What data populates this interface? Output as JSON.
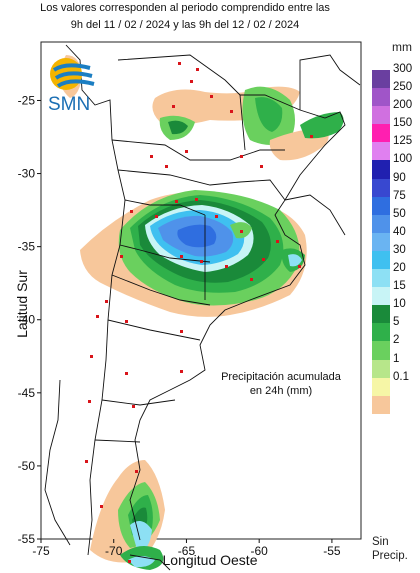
{
  "header": {
    "line1": "Los valores corresponden al periodo comprendido entre las",
    "line2": "9h del 11 / 02 / 2024  y las 9h del 12 / 02 / 2024"
  },
  "logo": {
    "text": "SMN",
    "icon": "smn-sun-waves-logo"
  },
  "map": {
    "xlabel": "Longitud Oeste",
    "ylabel": "Latitud Sur",
    "xticks": [
      "-75",
      "-70",
      "-65",
      "-60",
      "-55"
    ],
    "yticks": [
      "-25",
      "-30",
      "-35",
      "-40",
      "-45",
      "-50",
      "-55"
    ],
    "xlim": [
      -75,
      -53
    ],
    "ylim": [
      -55,
      -21
    ],
    "note_line1": "Precipitación acumulada",
    "note_line2": "en 24h (mm)"
  },
  "legend": {
    "unit": "mm",
    "items": [
      {
        "label": "300",
        "color": "#6a3fa0"
      },
      {
        "label": "250",
        "color": "#a055c8"
      },
      {
        "label": "200",
        "color": "#d070e0"
      },
      {
        "label": "150",
        "color": "#ff1fb0"
      },
      {
        "label": "125",
        "color": "#e080f0"
      },
      {
        "label": "100",
        "color": "#2020b0"
      },
      {
        "label": "90",
        "color": "#3848d0"
      },
      {
        "label": "75",
        "color": "#2f6ee0"
      },
      {
        "label": "50",
        "color": "#4f92ea"
      },
      {
        "label": "40",
        "color": "#6ab4f2"
      },
      {
        "label": "30",
        "color": "#3fc0f0"
      },
      {
        "label": "20",
        "color": "#8de0f4"
      },
      {
        "label": "15",
        "color": "#c8f4f6"
      },
      {
        "label": "10",
        "color": "#1a8a3a"
      },
      {
        "label": "5",
        "color": "#2fb04a"
      },
      {
        "label": "2",
        "color": "#6ad05e"
      },
      {
        "label": "1",
        "color": "#b7e68a"
      },
      {
        "label": "0.1",
        "color": "#f6f6a6"
      },
      {
        "label": "",
        "color": "#f7c79b"
      }
    ],
    "no_precip_line1": "Sin",
    "no_precip_line2": "Precip."
  }
}
